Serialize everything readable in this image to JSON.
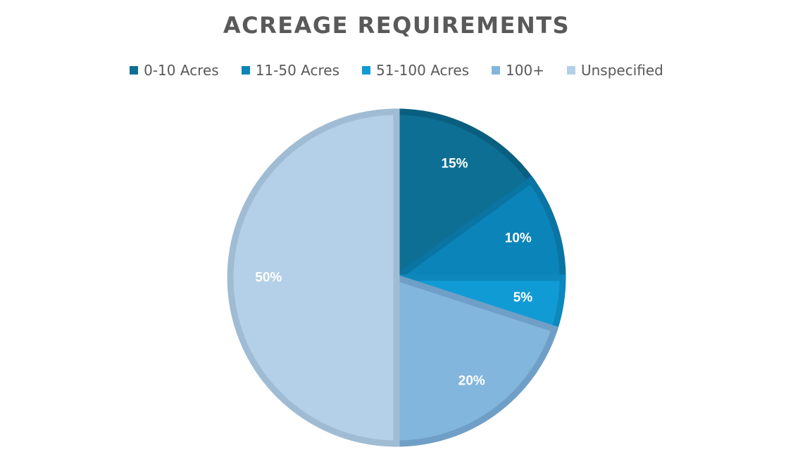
{
  "chart_data": {
    "type": "pie",
    "title": "ACREAGE REQUIREMENTS",
    "legend_position": "top",
    "categories": [
      "0-10 Acres",
      "11-50 Acres",
      "51-100 Acres",
      "100+",
      "Unspecified"
    ],
    "values": [
      15,
      10,
      5,
      20,
      50
    ],
    "labels": [
      "15%",
      "10%",
      "5%",
      "20%",
      "50%"
    ],
    "colors": [
      "#0e6f94",
      "#0b84b9",
      "#119bd5",
      "#82b6dd",
      "#b3d0e8"
    ],
    "border_colors": [
      "#0a5f80",
      "#0a74a2",
      "#0d88bd",
      "#6f9fc6",
      "#a0bcd4"
    ]
  }
}
